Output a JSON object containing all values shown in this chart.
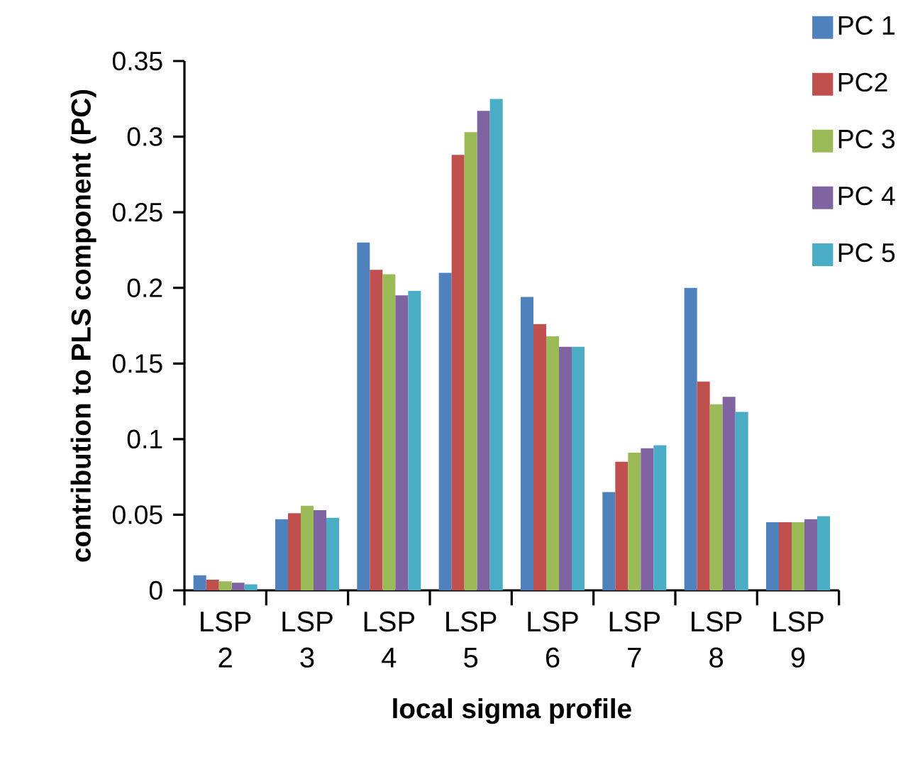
{
  "chart_data": {
    "type": "bar",
    "xlabel": "local sigma profile",
    "ylabel": "contribution to PLS component (PC)",
    "categories": [
      "LSP 2",
      "LSP 3",
      "LSP 4",
      "LSP 5",
      "LSP 6",
      "LSP 7",
      "LSP 8",
      "LSP 9"
    ],
    "series": [
      {
        "name": "PC 1",
        "color": "#4f81bd",
        "values": [
          0.01,
          0.047,
          0.23,
          0.21,
          0.194,
          0.065,
          0.2,
          0.045
        ]
      },
      {
        "name": "PC2",
        "color": "#c0504d",
        "values": [
          0.007,
          0.051,
          0.212,
          0.288,
          0.176,
          0.085,
          0.138,
          0.045
        ]
      },
      {
        "name": "PC 3",
        "color": "#9bbb59",
        "values": [
          0.006,
          0.056,
          0.209,
          0.303,
          0.168,
          0.091,
          0.123,
          0.045
        ]
      },
      {
        "name": "PC 4",
        "color": "#8064a2",
        "values": [
          0.005,
          0.053,
          0.195,
          0.317,
          0.161,
          0.094,
          0.128,
          0.047
        ]
      },
      {
        "name": "PC 5",
        "color": "#4bacc6",
        "values": [
          0.004,
          0.048,
          0.198,
          0.325,
          0.161,
          0.096,
          0.118,
          0.049
        ]
      }
    ],
    "ylim": [
      0,
      0.35
    ],
    "yticks": [
      0,
      0.05,
      0.1,
      0.15,
      0.2,
      0.25,
      0.3,
      0.35
    ],
    "grid": false,
    "legend": "top right"
  }
}
